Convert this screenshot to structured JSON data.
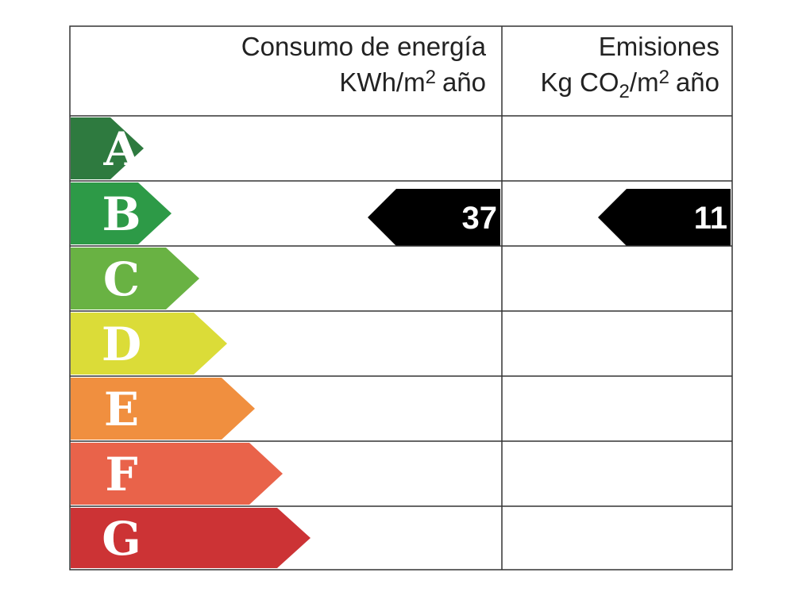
{
  "header": {
    "energy": {
      "line1": "Consumo de energía",
      "line2": [
        "KWh/m",
        "2",
        "año"
      ]
    },
    "emissions": {
      "line1": "Emisiones",
      "line2": [
        "Kg CO",
        "2",
        "/m",
        "2",
        "año"
      ]
    }
  },
  "rows": [
    {
      "letter": "A",
      "color": "#2e7a3f"
    },
    {
      "letter": "B",
      "color": "#2d9a47",
      "energy": 37,
      "emissions": 11
    },
    {
      "letter": "C",
      "color": "#69b243"
    },
    {
      "letter": "D",
      "color": "#dbdc38"
    },
    {
      "letter": "E",
      "color": "#f08f3f"
    },
    {
      "letter": "F",
      "color": "#e9634a"
    },
    {
      "letter": "G",
      "color": "#cc3335"
    }
  ]
}
